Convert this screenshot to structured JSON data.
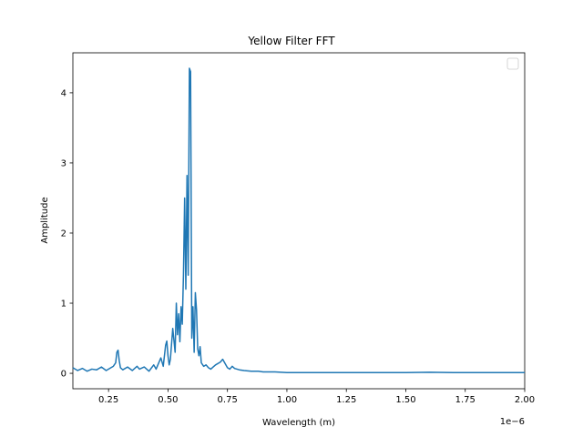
{
  "chart_data": {
    "type": "line",
    "title": "Yellow Filter FFT",
    "xlabel": "Wavelength (m)",
    "ylabel": "Amplitude",
    "x_offset_text": "1e−6",
    "xlim": [
      0.1,
      2.0
    ],
    "ylim": [
      -0.22,
      4.57
    ],
    "x_ticks": [
      0.25,
      0.5,
      0.75,
      1.0,
      1.25,
      1.5,
      1.75,
      2.0
    ],
    "x_tick_labels": [
      "0.25",
      "0.50",
      "0.75",
      "1.00",
      "1.25",
      "1.50",
      "1.75",
      "2.00"
    ],
    "y_ticks": [
      0,
      1,
      2,
      3,
      4
    ],
    "y_tick_labels": [
      "0",
      "1",
      "2",
      "3",
      "4"
    ],
    "grid": false,
    "legend": "top-right (empty)",
    "series": [
      {
        "color": "#1f77b4",
        "x": [
          0.1,
          0.12,
          0.14,
          0.16,
          0.18,
          0.2,
          0.22,
          0.24,
          0.26,
          0.27,
          0.28,
          0.285,
          0.29,
          0.295,
          0.3,
          0.31,
          0.33,
          0.35,
          0.37,
          0.38,
          0.4,
          0.42,
          0.44,
          0.45,
          0.47,
          0.48,
          0.49,
          0.495,
          0.5,
          0.505,
          0.51,
          0.52,
          0.53,
          0.535,
          0.54,
          0.545,
          0.55,
          0.555,
          0.56,
          0.565,
          0.57,
          0.575,
          0.58,
          0.585,
          0.59,
          0.595,
          0.6,
          0.605,
          0.61,
          0.615,
          0.62,
          0.625,
          0.63,
          0.635,
          0.64,
          0.65,
          0.66,
          0.67,
          0.68,
          0.69,
          0.7,
          0.72,
          0.73,
          0.74,
          0.75,
          0.76,
          0.77,
          0.78,
          0.8,
          0.82,
          0.85,
          0.88,
          0.9,
          0.95,
          1.0,
          1.1,
          1.2,
          1.3,
          1.4,
          1.5,
          1.6,
          1.7,
          1.8,
          1.9,
          2.0
        ],
        "y": [
          0.08,
          0.04,
          0.07,
          0.03,
          0.06,
          0.05,
          0.09,
          0.04,
          0.08,
          0.1,
          0.15,
          0.3,
          0.33,
          0.18,
          0.08,
          0.05,
          0.09,
          0.04,
          0.1,
          0.06,
          0.09,
          0.03,
          0.12,
          0.06,
          0.22,
          0.1,
          0.4,
          0.46,
          0.25,
          0.12,
          0.2,
          0.64,
          0.3,
          1.0,
          0.55,
          0.85,
          0.45,
          0.95,
          0.7,
          1.4,
          2.5,
          1.2,
          2.82,
          1.4,
          4.35,
          4.3,
          0.5,
          0.95,
          0.3,
          1.15,
          0.9,
          0.35,
          0.25,
          0.38,
          0.15,
          0.1,
          0.12,
          0.08,
          0.06,
          0.09,
          0.12,
          0.16,
          0.2,
          0.14,
          0.08,
          0.06,
          0.1,
          0.07,
          0.05,
          0.04,
          0.03,
          0.03,
          0.02,
          0.02,
          0.01,
          0.01,
          0.01,
          0.01,
          0.01,
          0.01,
          0.015,
          0.01,
          0.01,
          0.01,
          0.01
        ]
      }
    ]
  }
}
